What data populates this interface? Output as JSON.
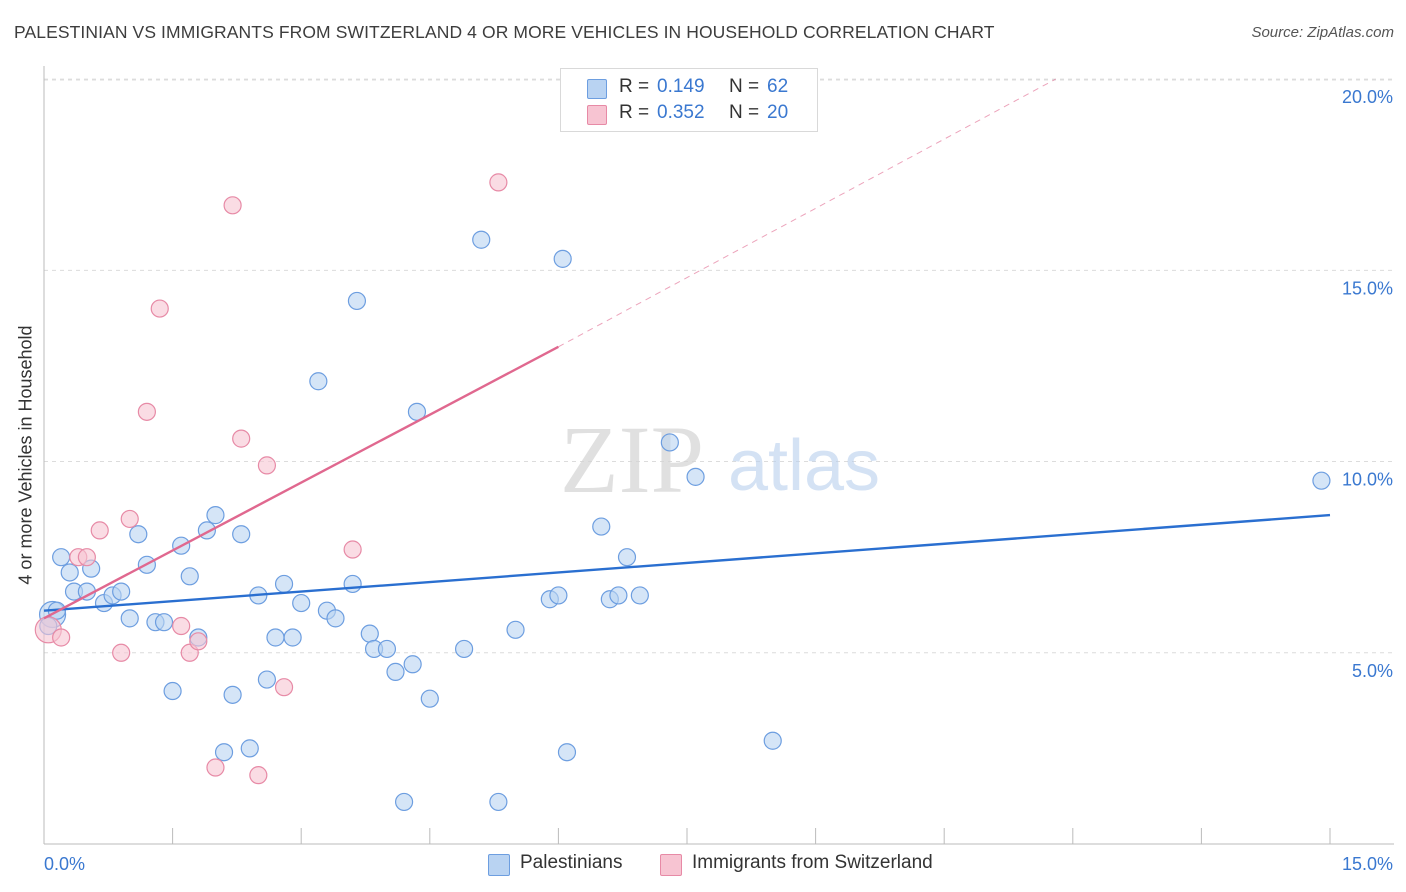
{
  "title": "PALESTINIAN VS IMMIGRANTS FROM SWITZERLAND 4 OR MORE VEHICLES IN HOUSEHOLD CORRELATION CHART",
  "source": "Source: ZipAtlas.com",
  "watermark": {
    "zip": "ZIP",
    "atlas": "atlas"
  },
  "legend": {
    "rows": [
      {
        "r_label": "R =",
        "r_value": "0.149",
        "n_label": "N =",
        "n_value": "62"
      },
      {
        "r_label": "R =",
        "r_value": "0.352",
        "n_label": "N =",
        "n_value": "20"
      }
    ],
    "series_names": [
      "Palestinians",
      "Immigrants from Switzerland"
    ]
  },
  "colors": {
    "blue_fill": "#b9d3f2",
    "blue_stroke": "#6d9ee0",
    "blue_line": "#2a6fd0",
    "pink_fill": "#f7c4d2",
    "pink_stroke": "#e78aa6",
    "pink_line": "#e0688f",
    "axis_text": "#3a78d0",
    "grid": "#dcdcdc"
  },
  "chart_data": {
    "type": "scatter",
    "title": "PALESTINIAN VS IMMIGRANTS FROM SWITZERLAND 4 OR MORE VEHICLES IN HOUSEHOLD CORRELATION CHART",
    "xlabel": "",
    "ylabel": "4 or more Vehicles in Household",
    "xlim": [
      0,
      15
    ],
    "ylim": [
      0,
      20.5
    ],
    "x_tick_labels": [
      "0.0%",
      "15.0%"
    ],
    "y_ticks": [
      5,
      10,
      15,
      20
    ],
    "y_tick_labels": [
      "5.0%",
      "10.0%",
      "15.0%",
      "20.0%"
    ],
    "series": [
      {
        "name": "Palestinians",
        "R": 0.149,
        "N": 62,
        "trend": {
          "x": [
            0,
            15
          ],
          "y": [
            6.1,
            8.6
          ],
          "dashed_extension": false
        },
        "points": [
          {
            "x": 0.1,
            "y": 6.0,
            "big": true
          },
          {
            "x": 0.2,
            "y": 7.5
          },
          {
            "x": 0.3,
            "y": 7.1
          },
          {
            "x": 0.35,
            "y": 6.6
          },
          {
            "x": 0.5,
            "y": 6.6
          },
          {
            "x": 0.55,
            "y": 7.2
          },
          {
            "x": 0.7,
            "y": 6.3
          },
          {
            "x": 0.8,
            "y": 6.5
          },
          {
            "x": 0.9,
            "y": 6.6
          },
          {
            "x": 1.0,
            "y": 5.9
          },
          {
            "x": 1.1,
            "y": 8.1
          },
          {
            "x": 1.2,
            "y": 7.3
          },
          {
            "x": 1.3,
            "y": 5.8
          },
          {
            "x": 1.4,
            "y": 5.8
          },
          {
            "x": 1.5,
            "y": 4.0
          },
          {
            "x": 1.6,
            "y": 7.8
          },
          {
            "x": 1.7,
            "y": 7.0
          },
          {
            "x": 1.8,
            "y": 5.4
          },
          {
            "x": 1.9,
            "y": 8.2
          },
          {
            "x": 2.0,
            "y": 8.6
          },
          {
            "x": 2.1,
            "y": 2.4
          },
          {
            "x": 2.2,
            "y": 3.9
          },
          {
            "x": 2.3,
            "y": 8.1
          },
          {
            "x": 2.4,
            "y": 2.5
          },
          {
            "x": 2.5,
            "y": 6.5
          },
          {
            "x": 2.6,
            "y": 4.3
          },
          {
            "x": 2.7,
            "y": 5.4
          },
          {
            "x": 2.8,
            "y": 6.8
          },
          {
            "x": 2.9,
            "y": 5.4
          },
          {
            "x": 3.0,
            "y": 6.3
          },
          {
            "x": 3.2,
            "y": 12.1
          },
          {
            "x": 3.3,
            "y": 6.1
          },
          {
            "x": 3.4,
            "y": 5.9
          },
          {
            "x": 3.6,
            "y": 6.8
          },
          {
            "x": 3.65,
            "y": 14.2
          },
          {
            "x": 3.8,
            "y": 5.5
          },
          {
            "x": 3.85,
            "y": 5.1
          },
          {
            "x": 4.0,
            "y": 5.1
          },
          {
            "x": 4.1,
            "y": 4.5
          },
          {
            "x": 4.2,
            "y": 1.1
          },
          {
            "x": 4.3,
            "y": 4.7
          },
          {
            "x": 4.35,
            "y": 11.3
          },
          {
            "x": 4.5,
            "y": 3.8
          },
          {
            "x": 4.9,
            "y": 5.1
          },
          {
            "x": 5.1,
            "y": 15.8
          },
          {
            "x": 5.3,
            "y": 1.1
          },
          {
            "x": 5.5,
            "y": 5.6
          },
          {
            "x": 5.9,
            "y": 6.4
          },
          {
            "x": 6.0,
            "y": 6.5
          },
          {
            "x": 6.05,
            "y": 15.3
          },
          {
            "x": 6.1,
            "y": 2.4
          },
          {
            "x": 6.5,
            "y": 8.3
          },
          {
            "x": 6.6,
            "y": 6.4
          },
          {
            "x": 6.7,
            "y": 6.5
          },
          {
            "x": 6.8,
            "y": 7.5
          },
          {
            "x": 6.95,
            "y": 6.5
          },
          {
            "x": 7.3,
            "y": 10.5
          },
          {
            "x": 7.6,
            "y": 9.6
          },
          {
            "x": 8.5,
            "y": 2.7
          },
          {
            "x": 14.9,
            "y": 9.5
          },
          {
            "x": 0.05,
            "y": 5.7
          },
          {
            "x": 0.15,
            "y": 6.1
          }
        ]
      },
      {
        "name": "Immigrants from Switzerland",
        "R": 0.352,
        "N": 20,
        "trend": {
          "x": [
            0,
            6.0
          ],
          "y": [
            5.9,
            13.0
          ],
          "dashed_extension_to": {
            "x": 11.8,
            "y": 20.0
          }
        },
        "points": [
          {
            "x": 0.05,
            "y": 5.6,
            "big": true
          },
          {
            "x": 0.2,
            "y": 5.4
          },
          {
            "x": 0.4,
            "y": 7.5
          },
          {
            "x": 0.5,
            "y": 7.5
          },
          {
            "x": 0.65,
            "y": 8.2
          },
          {
            "x": 0.9,
            "y": 5.0
          },
          {
            "x": 1.0,
            "y": 8.5
          },
          {
            "x": 1.2,
            "y": 11.3
          },
          {
            "x": 1.35,
            "y": 14.0
          },
          {
            "x": 1.6,
            "y": 5.7
          },
          {
            "x": 1.7,
            "y": 5.0
          },
          {
            "x": 1.8,
            "y": 5.3
          },
          {
            "x": 2.0,
            "y": 2.0
          },
          {
            "x": 2.2,
            "y": 16.7
          },
          {
            "x": 2.3,
            "y": 10.6
          },
          {
            "x": 2.5,
            "y": 1.8
          },
          {
            "x": 2.6,
            "y": 9.9
          },
          {
            "x": 2.8,
            "y": 4.1
          },
          {
            "x": 3.6,
            "y": 7.7
          },
          {
            "x": 5.3,
            "y": 17.3
          }
        ]
      }
    ]
  }
}
